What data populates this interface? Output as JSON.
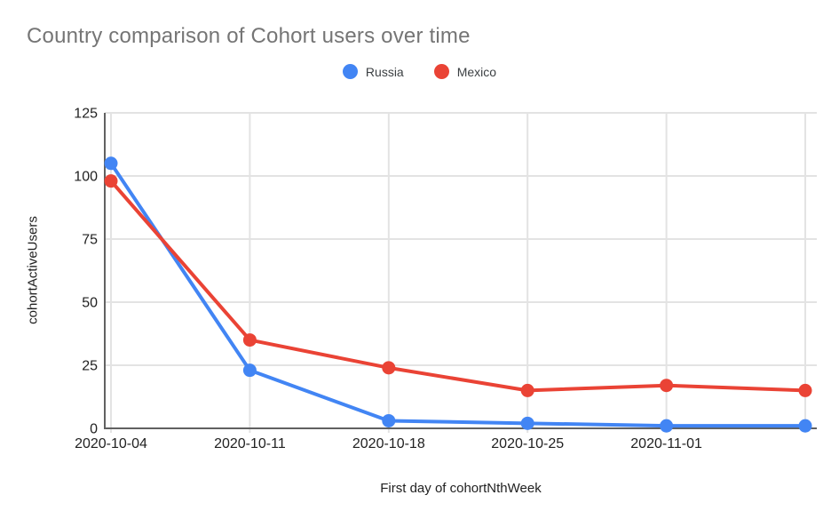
{
  "header": {
    "title": "Country comparison of Cohort users over time"
  },
  "legend": {
    "items": [
      {
        "label": "Russia",
        "color": "#4285F4"
      },
      {
        "label": "Mexico",
        "color": "#EA4335"
      }
    ]
  },
  "axes": {
    "x_title": "First day of cohortNthWeek",
    "y_title": "cohortActiveUsers"
  },
  "chart_data": {
    "type": "line",
    "title": "Country comparison of Cohort users over time",
    "xlabel": "First day of cohortNthWeek",
    "ylabel": "cohortActiveUsers",
    "categories": [
      "2020-10-04",
      "2020-10-11",
      "2020-10-18",
      "2020-10-25",
      "2020-11-01",
      ""
    ],
    "series": [
      {
        "name": "Russia",
        "color": "#4285F4",
        "values": [
          105,
          23,
          3,
          2,
          1,
          1
        ]
      },
      {
        "name": "Mexico",
        "color": "#EA4335",
        "values": [
          98,
          35,
          24,
          15,
          17,
          15
        ]
      }
    ],
    "ylim": [
      0,
      125
    ],
    "yticks": [
      0,
      25,
      50,
      75,
      100,
      125
    ],
    "grid": true,
    "legend_position": "top-center",
    "colors": {
      "title": "#757575",
      "tick_label": "#212121",
      "axis": "#616161",
      "gridline": "#e3e3e3"
    }
  }
}
